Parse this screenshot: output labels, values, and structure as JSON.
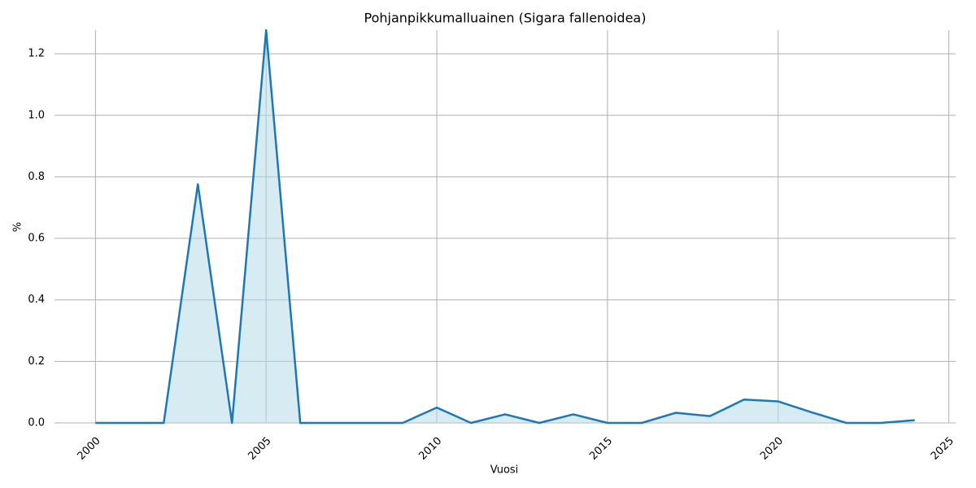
{
  "chart_data": {
    "type": "area",
    "title": "Pohjanpikkumalluainen (Sigara fallenoidea)",
    "x_label": "Vuosi",
    "y_label": "%",
    "x": [
      2000,
      2001,
      2002,
      2003,
      2004,
      2005,
      2006,
      2007,
      2008,
      2009,
      2010,
      2011,
      2012,
      2013,
      2014,
      2015,
      2016,
      2017,
      2018,
      2019,
      2020,
      2021,
      2022,
      2023,
      2024
    ],
    "values": [
      0,
      0,
      0,
      0.776,
      0,
      1.277,
      0,
      0,
      0,
      0,
      0.05,
      0,
      0.028,
      0,
      0.028,
      0,
      0,
      0.033,
      0.022,
      0.076,
      0.07,
      0.034,
      0,
      0,
      0.009
    ],
    "color": "#1f77b4",
    "fill_color": "#add8e6",
    "xlim": [
      1998.8,
      2025.2
    ],
    "xticks": [
      2000,
      2005,
      2010,
      2015,
      2020,
      2025
    ],
    "ylim": [
      0,
      1.277
    ],
    "yticks": [
      {
        "value": 0,
        "label": "0.0"
      },
      0.2,
      0.4,
      0.6,
      0.8,
      {
        "value": 1,
        "label": "1.0"
      },
      1.2
    ],
    "grid": true
  }
}
